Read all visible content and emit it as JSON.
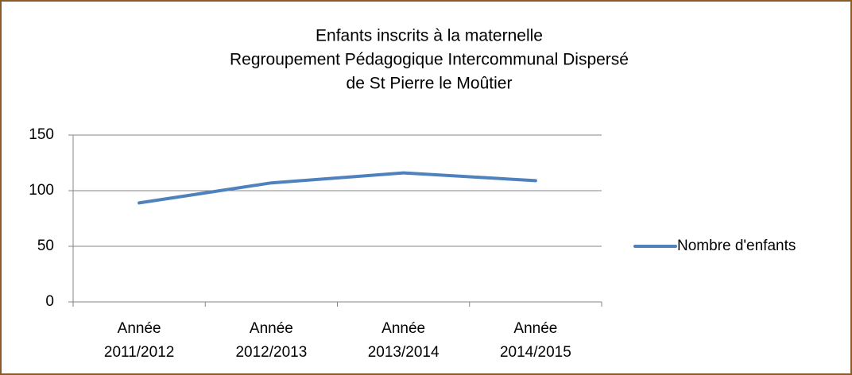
{
  "chart_data": {
    "type": "line",
    "title": [
      "Enfants inscrits à la maternelle",
      "Regroupement Pédagogique Intercommunal Dispersé",
      "de St Pierre le Moûtier"
    ],
    "categories": [
      "Année 2011/2012",
      "Année 2012/2013",
      "Année 2013/2014",
      "Année 2014/2015"
    ],
    "series": [
      {
        "name": "Nombre d'enfants",
        "color": "#4f81bd",
        "values": [
          89,
          107,
          116,
          109
        ]
      }
    ],
    "ylim": [
      0,
      150
    ],
    "yticks": [
      0,
      50,
      100,
      150
    ],
    "grid": true,
    "legend": "right"
  }
}
